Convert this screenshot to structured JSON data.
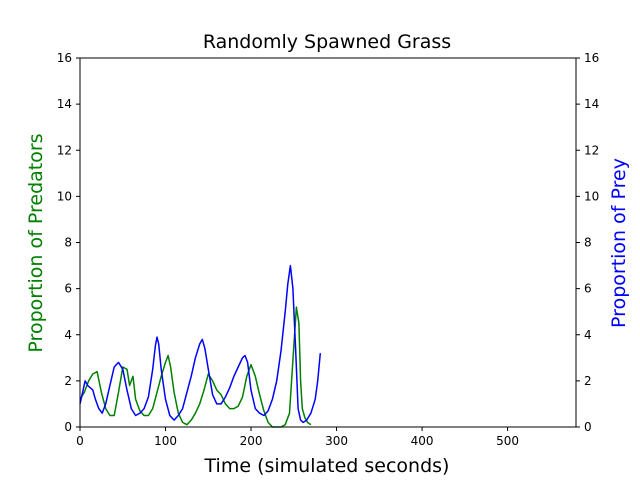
{
  "chart_data": {
    "type": "line",
    "title": "Randomly Spawned Grass",
    "xlabel": "Time (simulated seconds)",
    "ylabel_left": "Proportion of Predators",
    "ylabel_right": "Proportion of Prey",
    "xlim": [
      0,
      580
    ],
    "ylim": [
      0,
      16
    ],
    "x_ticks": [
      0,
      100,
      200,
      300,
      400,
      500
    ],
    "y_ticks": [
      0,
      2,
      4,
      6,
      8,
      10,
      12,
      14,
      16
    ],
    "grid": false,
    "colors": {
      "predators": "#008000",
      "prey": "#0000ff",
      "left_label": "#008000",
      "right_label": "#0000ff"
    },
    "series": [
      {
        "axis": "left",
        "color": "#008000",
        "x": [
          0,
          5,
          10,
          15,
          20,
          25,
          30,
          35,
          40,
          45,
          50,
          55,
          58,
          62,
          65,
          70,
          75,
          80,
          85,
          90,
          95,
          100,
          103,
          106,
          110,
          115,
          120,
          125,
          130,
          135,
          140,
          145,
          150,
          155,
          160,
          165,
          170,
          175,
          180,
          185,
          190,
          195,
          200,
          205,
          210,
          215,
          220,
          225,
          230,
          235,
          240,
          245,
          250,
          253,
          256,
          258,
          260,
          263,
          266,
          270
        ],
        "values": [
          1.2,
          1.5,
          2.0,
          2.3,
          2.4,
          1.5,
          0.8,
          0.5,
          0.5,
          1.5,
          2.6,
          2.5,
          1.8,
          2.2,
          1.2,
          0.7,
          0.5,
          0.5,
          0.8,
          1.5,
          2.2,
          2.8,
          3.1,
          2.6,
          1.5,
          0.6,
          0.2,
          0.1,
          0.3,
          0.6,
          1.0,
          1.6,
          2.3,
          2.0,
          1.6,
          1.4,
          1.0,
          0.8,
          0.8,
          0.9,
          1.3,
          2.2,
          2.7,
          2.2,
          1.4,
          0.7,
          0.2,
          0.0,
          0.0,
          0.0,
          0.1,
          0.6,
          3.5,
          5.2,
          4.5,
          2.0,
          0.8,
          0.4,
          0.2,
          0.1
        ]
      },
      {
        "axis": "right",
        "color": "#0000ff",
        "x": [
          0,
          3,
          6,
          9,
          12,
          15,
          18,
          22,
          26,
          30,
          35,
          40,
          45,
          50,
          55,
          60,
          65,
          70,
          75,
          80,
          85,
          88,
          90,
          92,
          95,
          100,
          105,
          110,
          115,
          120,
          125,
          130,
          135,
          140,
          143,
          146,
          150,
          155,
          160,
          165,
          170,
          175,
          180,
          185,
          190,
          193,
          196,
          200,
          205,
          210,
          215,
          220,
          225,
          230,
          235,
          240,
          243,
          246,
          249,
          252,
          255,
          258,
          261,
          265,
          270,
          275,
          278,
          281
        ],
        "values": [
          1.0,
          1.5,
          2.0,
          1.8,
          1.7,
          1.6,
          1.2,
          0.8,
          0.6,
          1.0,
          1.8,
          2.6,
          2.8,
          2.5,
          1.6,
          0.8,
          0.5,
          0.6,
          0.8,
          1.3,
          2.5,
          3.5,
          3.9,
          3.6,
          2.5,
          1.2,
          0.5,
          0.3,
          0.5,
          0.8,
          1.5,
          2.2,
          3.0,
          3.6,
          3.8,
          3.4,
          2.5,
          1.4,
          1.0,
          1.0,
          1.3,
          1.7,
          2.2,
          2.6,
          3.0,
          3.1,
          2.8,
          1.6,
          0.8,
          0.6,
          0.5,
          0.7,
          1.2,
          2.0,
          3.3,
          5.0,
          6.2,
          7.0,
          6.0,
          3.5,
          0.8,
          0.3,
          0.2,
          0.3,
          0.6,
          1.2,
          2.0,
          3.2
        ]
      }
    ]
  }
}
